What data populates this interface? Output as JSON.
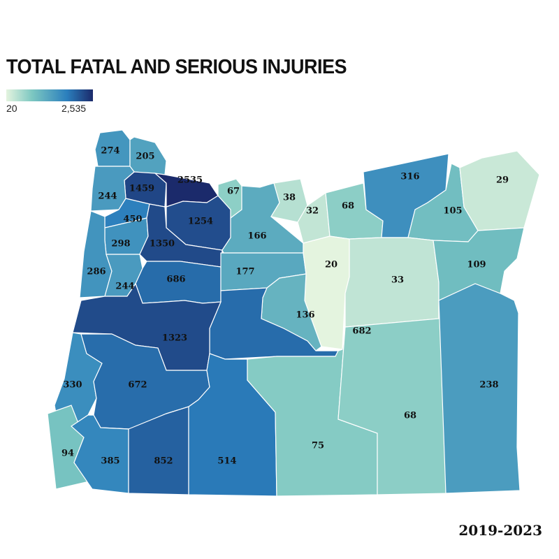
{
  "title": "TOTAL FATAL AND SERIOUS INJURIES",
  "legend": {
    "min": "20",
    "max": "2,535",
    "min_value": 20,
    "max_value": 2535
  },
  "years": "2019-2023",
  "colors": {
    "low": "#e4f4df",
    "mid_low": "#7cc7c1",
    "mid": "#2b7fbd",
    "high": "#1b2a6b"
  },
  "counties": [
    {
      "value": 274
    },
    {
      "value": 205
    },
    {
      "value": 1459
    },
    {
      "value": 2535
    },
    {
      "value": 244
    },
    {
      "value": 450
    },
    {
      "value": 1254
    },
    {
      "value": 298
    },
    {
      "value": 1350
    },
    {
      "value": 286
    },
    {
      "value": 244
    },
    {
      "value": 686
    },
    {
      "value": 67
    },
    {
      "value": 166
    },
    {
      "value": 177
    },
    {
      "value": 38
    },
    {
      "value": 32
    },
    {
      "value": 68
    },
    {
      "value": 316
    },
    {
      "value": 105
    },
    {
      "value": 29
    },
    {
      "value": 20
    },
    {
      "value": 33
    },
    {
      "value": 109
    },
    {
      "value": 136
    },
    {
      "value": 682
    },
    {
      "value": 1323
    },
    {
      "value": 330
    },
    {
      "value": 672
    },
    {
      "value": 94
    },
    {
      "value": 385
    },
    {
      "value": 852
    },
    {
      "value": 514
    },
    {
      "value": 75
    },
    {
      "value": 68
    },
    {
      "value": 238
    }
  ]
}
